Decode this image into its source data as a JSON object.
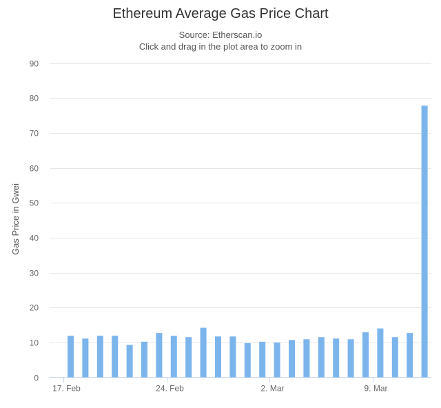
{
  "chart_data": {
    "type": "bar",
    "title": "Ethereum Average Gas Price Chart",
    "subtitle": "Source: Etherscan.io",
    "subtitle2": "Click and drag in the plot area to zoom in",
    "xlabel": "",
    "ylabel": "Gas Price in Gwei",
    "ylim": [
      0,
      90
    ],
    "yticks": [
      0,
      10,
      20,
      30,
      40,
      50,
      60,
      70,
      80,
      90
    ],
    "grid": true,
    "legend": "none",
    "color": "#7cb5ec",
    "x_start_day": 0,
    "x_tick_labels": [
      {
        "day": 0,
        "label": "17. Feb"
      },
      {
        "day": 7,
        "label": "24. Feb"
      },
      {
        "day": 14,
        "label": "2. Mar"
      },
      {
        "day": 21,
        "label": "9. Mar"
      }
    ],
    "values": [
      11.9,
      11.1,
      11.9,
      11.9,
      9.3,
      10.2,
      12.7,
      11.9,
      11.5,
      14.2,
      11.7,
      11.7,
      9.8,
      10.2,
      10.0,
      10.7,
      10.9,
      11.5,
      11.1,
      10.9,
      12.9,
      14.0,
      11.5,
      12.7,
      77.8
    ]
  }
}
